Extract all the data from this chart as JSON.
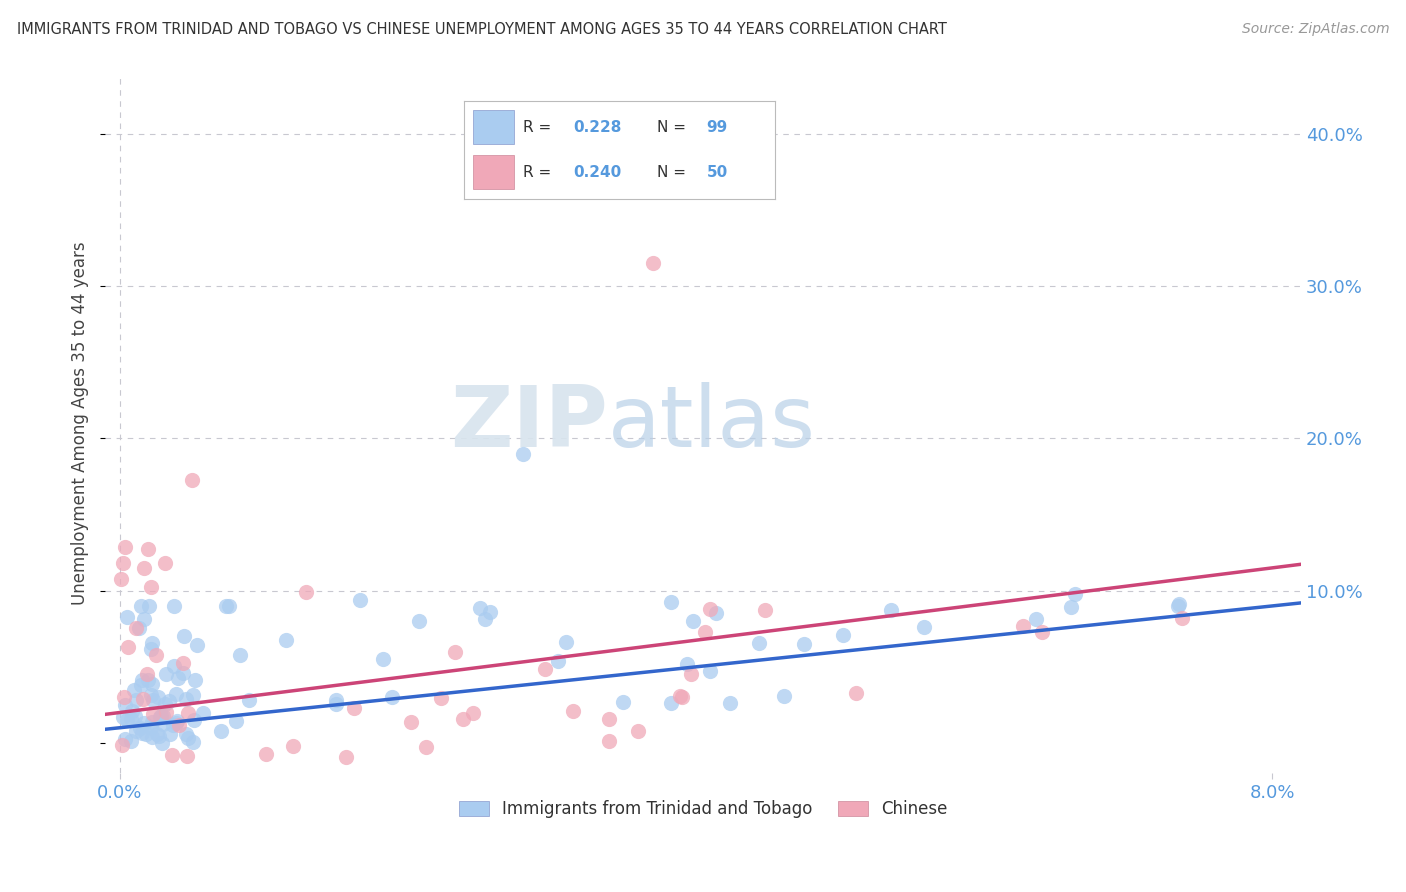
{
  "title": "IMMIGRANTS FROM TRINIDAD AND TOBAGO VS CHINESE UNEMPLOYMENT AMONG AGES 35 TO 44 YEARS CORRELATION CHART",
  "source": "Source: ZipAtlas.com",
  "ylabel": "Unemployment Among Ages 35 to 44 years",
  "xlim": [
    -0.001,
    0.082
  ],
  "ylim": [
    -0.02,
    0.44
  ],
  "ytick_vals": [
    0.0,
    0.1,
    0.2,
    0.3,
    0.4
  ],
  "ytick_labels": [
    "",
    "10.0%",
    "20.0%",
    "30.0%",
    "40.0%"
  ],
  "xtick_vals": [
    0.0,
    0.08
  ],
  "xtick_labels": [
    "0.0%",
    "8.0%"
  ],
  "blue_label": "Immigrants from Trinidad and Tobago",
  "pink_label": "Chinese",
  "blue_R": 0.228,
  "blue_N": 99,
  "pink_R": 0.24,
  "pink_N": 50,
  "blue_color": "#aaccf0",
  "pink_color": "#f0a8b8",
  "blue_line_color": "#3366cc",
  "pink_line_color": "#cc4477",
  "watermark_zip": "ZIP",
  "watermark_atlas": "atlas",
  "background_color": "#ffffff",
  "grid_color": "#c8c8d0",
  "title_color": "#333333",
  "tick_color": "#5599dd",
  "ylabel_color": "#444444"
}
